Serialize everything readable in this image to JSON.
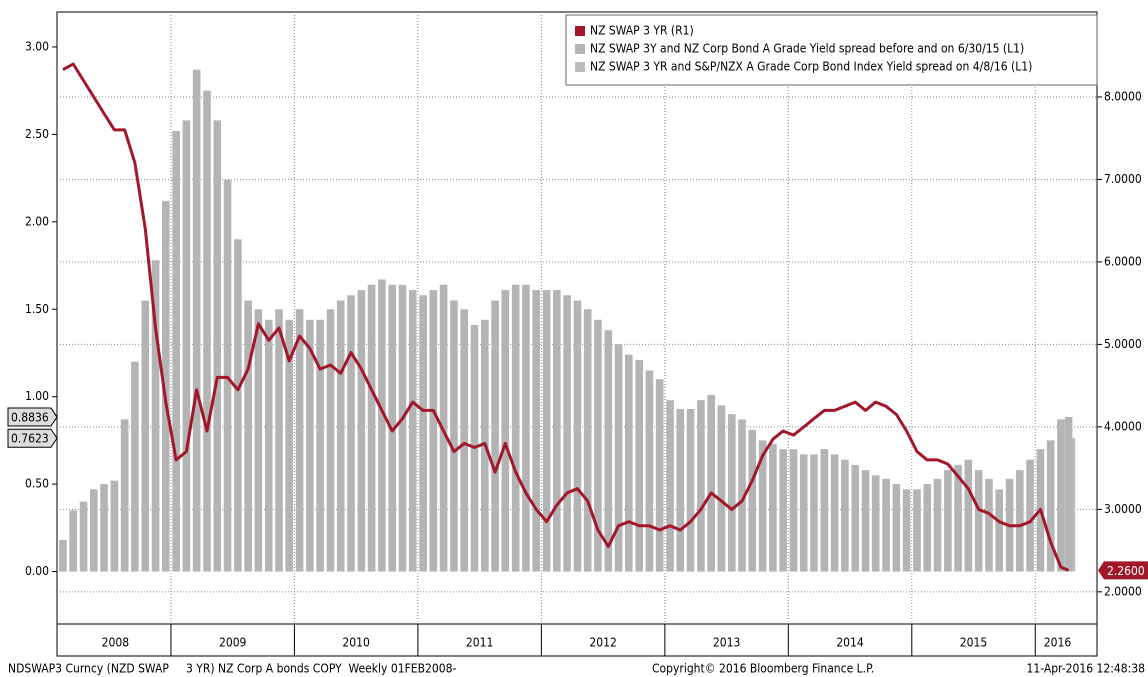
{
  "chart_data": {
    "type": "combo",
    "legend_corner": "upper right",
    "grid": true,
    "x": [
      2008.125,
      2008.208,
      2008.292,
      2008.375,
      2008.458,
      2008.542,
      2008.625,
      2008.708,
      2008.792,
      2008.875,
      2008.958,
      2009.042,
      2009.125,
      2009.208,
      2009.292,
      2009.375,
      2009.458,
      2009.542,
      2009.625,
      2009.708,
      2009.792,
      2009.875,
      2009.958,
      2010.042,
      2010.125,
      2010.208,
      2010.292,
      2010.375,
      2010.458,
      2010.542,
      2010.625,
      2010.708,
      2010.792,
      2010.875,
      2010.958,
      2011.042,
      2011.125,
      2011.208,
      2011.292,
      2011.375,
      2011.458,
      2011.542,
      2011.625,
      2011.708,
      2011.792,
      2011.875,
      2011.958,
      2012.042,
      2012.125,
      2012.208,
      2012.292,
      2012.375,
      2012.458,
      2012.542,
      2012.625,
      2012.708,
      2012.792,
      2012.875,
      2012.958,
      2013.042,
      2013.125,
      2013.208,
      2013.292,
      2013.375,
      2013.458,
      2013.542,
      2013.625,
      2013.708,
      2013.792,
      2013.875,
      2013.958,
      2014.042,
      2014.125,
      2014.208,
      2014.292,
      2014.375,
      2014.458,
      2014.542,
      2014.625,
      2014.708,
      2014.792,
      2014.875,
      2014.958,
      2015.042,
      2015.125,
      2015.208,
      2015.292,
      2015.375,
      2015.458,
      2015.542,
      2015.625,
      2015.708,
      2015.792,
      2015.875,
      2015.958,
      2016.042,
      2016.125,
      2016.208,
      2016.27
    ],
    "series": [
      {
        "name": "NZ SWAP 3 YR (R1)",
        "type": "line",
        "axis": "y2",
        "color": "#a3172a",
        "end_label": "2.2600",
        "values": [
          8.33,
          8.4,
          8.2,
          8.0,
          7.8,
          7.6,
          7.6,
          7.2,
          6.4,
          5.2,
          4.3,
          3.6,
          3.7,
          4.45,
          3.95,
          4.6,
          4.6,
          4.45,
          4.7,
          5.25,
          5.05,
          5.2,
          4.8,
          5.1,
          4.95,
          4.7,
          4.75,
          4.65,
          4.9,
          4.7,
          4.45,
          4.2,
          3.95,
          4.1,
          4.3,
          4.2,
          4.2,
          3.95,
          3.7,
          3.8,
          3.75,
          3.8,
          3.45,
          3.8,
          3.45,
          3.2,
          3.0,
          2.85,
          3.05,
          3.2,
          3.25,
          3.1,
          2.75,
          2.55,
          2.8,
          2.85,
          2.8,
          2.8,
          2.75,
          2.8,
          2.75,
          2.85,
          3.0,
          3.2,
          3.1,
          3.0,
          3.1,
          3.35,
          3.65,
          3.85,
          3.95,
          3.9,
          4.0,
          4.1,
          4.2,
          4.2,
          4.25,
          4.3,
          4.2,
          4.3,
          4.25,
          4.15,
          3.95,
          3.7,
          3.6,
          3.6,
          3.55,
          3.4,
          3.25,
          3.0,
          2.95,
          2.85,
          2.8,
          2.8,
          2.85,
          3.0,
          2.6,
          2.3,
          2.26
        ]
      },
      {
        "name": "NZ SWAP 3Y and NZ Corp Bond A Grade Yield spread before and on 6/30/15 (L1)",
        "type": "bar",
        "axis": "y",
        "color": "#b4b4b4",
        "end_label": "0.8836",
        "values": [
          0.18,
          0.35,
          0.4,
          0.47,
          0.5,
          0.52,
          0.87,
          1.2,
          1.55,
          1.78,
          2.12,
          2.52,
          2.58,
          2.87,
          2.75,
          2.58,
          2.24,
          1.9,
          1.55,
          1.5,
          1.44,
          1.5,
          1.44,
          1.5,
          1.44,
          1.44,
          1.5,
          1.55,
          1.58,
          1.61,
          1.64,
          1.67,
          1.64,
          1.64,
          1.61,
          1.58,
          1.61,
          1.64,
          1.55,
          1.5,
          1.41,
          1.44,
          1.55,
          1.61,
          1.64,
          1.64,
          1.61,
          1.61,
          1.61,
          1.58,
          1.55,
          1.5,
          1.44,
          1.38,
          1.3,
          1.24,
          1.21,
          1.15,
          1.1,
          0.98,
          0.93,
          0.93,
          0.98,
          1.01,
          0.95,
          0.9,
          0.87,
          0.81,
          0.75,
          0.73,
          0.7,
          0.7,
          0.67,
          0.67,
          0.7,
          0.67,
          0.64,
          0.61,
          0.58,
          0.55,
          0.53,
          0.5,
          0.47,
          0.47,
          0.5,
          0.53,
          0.58,
          0.61,
          0.64,
          0.58,
          0.53,
          0.47,
          0.53,
          0.58,
          0.64,
          0.7,
          0.75,
          0.87,
          0.8836
        ]
      },
      {
        "name": "NZ SWAP 3 YR and S&P/NZX A Grade Corp Bond Index Yield spread on 4/8/16 (L1)",
        "type": "bar",
        "axis": "y",
        "color": "#bcbcbc",
        "end_label": "0.7623",
        "x": [
          2016.292
        ],
        "values": [
          0.7623
        ]
      }
    ],
    "xlim": [
      2008.077,
      2016.5
    ],
    "xgrid": [
      2009,
      2010,
      2011,
      2012,
      2013,
      2014,
      2015,
      2016
    ],
    "xticks": [
      {
        "value": 2008.55,
        "label": "2008"
      },
      {
        "value": 2009.5,
        "label": "2009"
      },
      {
        "value": 2010.5,
        "label": "2010"
      },
      {
        "value": 2011.5,
        "label": "2011"
      },
      {
        "value": 2012.5,
        "label": "2012"
      },
      {
        "value": 2013.5,
        "label": "2013"
      },
      {
        "value": 2014.5,
        "label": "2014"
      },
      {
        "value": 2015.5,
        "label": "2015"
      },
      {
        "value": 2016.18,
        "label": "2016"
      }
    ],
    "ylim": [
      -0.3,
      3.2
    ],
    "yticks": [
      {
        "value": 0,
        "label": "0.00"
      },
      {
        "value": 0.5,
        "label": "0.50"
      },
      {
        "value": 1,
        "label": "1.00"
      },
      {
        "value": 1.5,
        "label": "1.50"
      },
      {
        "value": 2,
        "label": "2.00"
      },
      {
        "value": 2.5,
        "label": "2.50"
      },
      {
        "value": 3,
        "label": "3.00"
      }
    ],
    "y2lim": [
      1.61,
      9.03
    ],
    "y2ticks": [
      {
        "value": 2,
        "label": "2.0000"
      },
      {
        "value": 3,
        "label": "3.0000"
      },
      {
        "value": 4,
        "label": "4.0000"
      },
      {
        "value": 5,
        "label": "5.0000"
      },
      {
        "value": 6,
        "label": "6.0000"
      },
      {
        "value": 7,
        "label": "7.0000"
      },
      {
        "value": 8,
        "label": "8.0000"
      }
    ],
    "footer": [
      "NDSWAP3 Curncy (NZD SWAP     3 YR) NZ Corp A bonds COPY  Weekly 01FEB2008-",
      "Copyright© 2016 Bloomberg Finance L.P.",
      "11-Apr-2016 12:48:38"
    ]
  }
}
